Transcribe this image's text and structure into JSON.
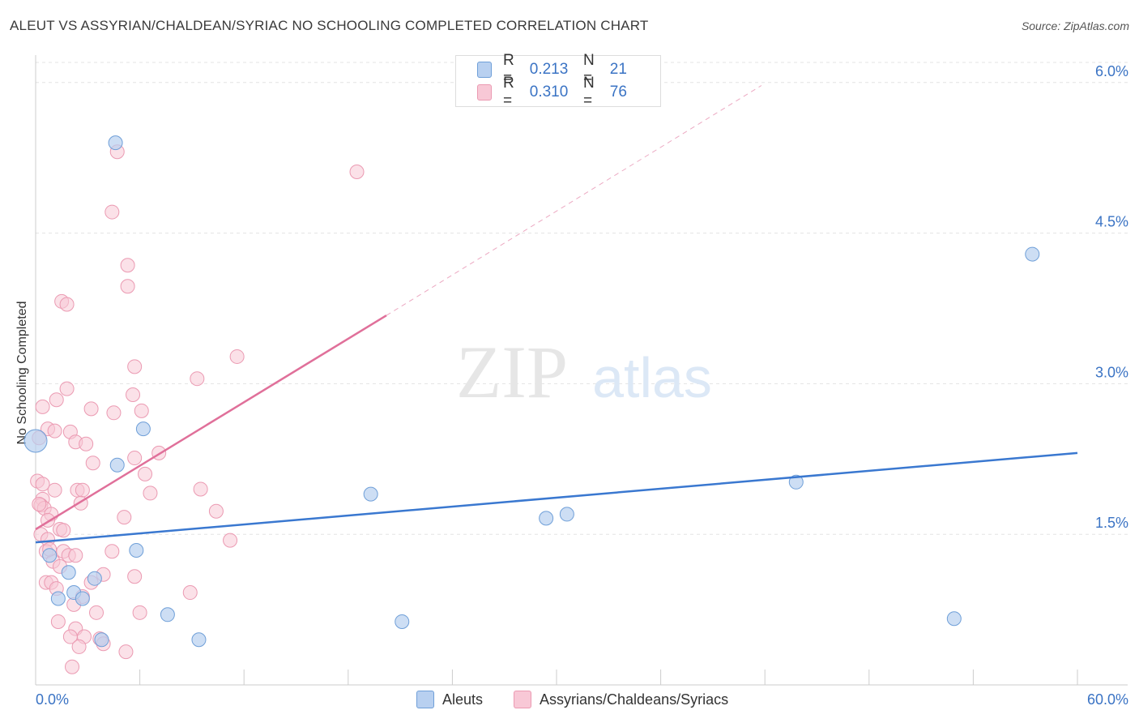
{
  "header": {
    "title": "ALEUT VS ASSYRIAN/CHALDEAN/SYRIAC NO SCHOOLING COMPLETED CORRELATION CHART",
    "source": "Source: ZipAtlas.com"
  },
  "watermark": {
    "zip": "ZIP",
    "atlas": "atlas"
  },
  "legend": {
    "rows": [
      {
        "r_label": "R =",
        "r_value": "0.213",
        "n_label": "N =",
        "n_value": "21"
      },
      {
        "r_label": "R =",
        "r_value": "0.310",
        "n_label": "N =",
        "n_value": "76"
      }
    ]
  },
  "bottom_legend": {
    "aleuts": "Aleuts",
    "assyrians": "Assyrians/Chaldeans/Syriacs"
  },
  "chart_data": {
    "type": "scatter",
    "title": "ALEUT VS ASSYRIAN/CHALDEAN/SYRIAC NO SCHOOLING COMPLETED CORRELATION CHART",
    "xlabel": "",
    "ylabel": "No Schooling Completed",
    "xlim": [
      0,
      60
    ],
    "ylim": [
      0,
      6.2
    ],
    "x_tick_labels": [
      "0.0%",
      "60.0%"
    ],
    "y_ticks": [
      1.5,
      3.0,
      4.5,
      6.0
    ],
    "y_tick_labels": [
      "1.5%",
      "3.0%",
      "4.5%",
      "6.0%"
    ],
    "grid": true,
    "colors": {
      "aleuts_fill": "#b8d0f0",
      "aleuts_stroke": "#6f9fd8",
      "aleuts_line": "#3a78d0",
      "assyrians_fill": "#f8c8d6",
      "assyrians_stroke": "#eb9ab2",
      "assyrians_line": "#e0709a",
      "tick_label": "#3a73c4"
    },
    "series": [
      {
        "name": "Aleuts",
        "r": 0.213,
        "n": 21,
        "trend": {
          "x": [
            0,
            60
          ],
          "y": [
            1.42,
            2.31
          ]
        },
        "points": [
          {
            "x": 0.0,
            "y": 2.43,
            "big": true
          },
          {
            "x": 4.6,
            "y": 5.4
          },
          {
            "x": 6.2,
            "y": 2.55
          },
          {
            "x": 4.7,
            "y": 2.19
          },
          {
            "x": 5.8,
            "y": 1.34
          },
          {
            "x": 0.8,
            "y": 1.29
          },
          {
            "x": 1.9,
            "y": 1.12
          },
          {
            "x": 2.2,
            "y": 0.92
          },
          {
            "x": 1.3,
            "y": 0.86
          },
          {
            "x": 2.7,
            "y": 0.86
          },
          {
            "x": 3.4,
            "y": 1.06
          },
          {
            "x": 3.8,
            "y": 0.45
          },
          {
            "x": 7.6,
            "y": 0.7
          },
          {
            "x": 9.4,
            "y": 0.45
          },
          {
            "x": 19.3,
            "y": 1.9
          },
          {
            "x": 21.1,
            "y": 0.63
          },
          {
            "x": 29.4,
            "y": 1.66
          },
          {
            "x": 30.6,
            "y": 1.7
          },
          {
            "x": 43.8,
            "y": 2.02
          },
          {
            "x": 57.4,
            "y": 4.29
          },
          {
            "x": 52.9,
            "y": 0.66
          }
        ]
      },
      {
        "name": "Assyrians/Chaldeans/Syriacs",
        "r": 0.31,
        "n": 76,
        "trend": {
          "x": [
            0,
            20.2
          ],
          "y": [
            1.55,
            3.68
          ]
        },
        "trend_dashed": {
          "x": [
            20.2,
            41.8
          ],
          "y": [
            3.68,
            5.97
          ]
        },
        "points": [
          {
            "x": 4.7,
            "y": 5.31
          },
          {
            "x": 18.5,
            "y": 5.11
          },
          {
            "x": 4.4,
            "y": 4.71
          },
          {
            "x": 5.3,
            "y": 4.18
          },
          {
            "x": 5.3,
            "y": 3.97
          },
          {
            "x": 1.5,
            "y": 3.82
          },
          {
            "x": 1.8,
            "y": 3.79
          },
          {
            "x": 11.6,
            "y": 3.27
          },
          {
            "x": 5.7,
            "y": 3.17
          },
          {
            "x": 9.3,
            "y": 3.05
          },
          {
            "x": 1.8,
            "y": 2.95
          },
          {
            "x": 5.6,
            "y": 2.89
          },
          {
            "x": 1.2,
            "y": 2.84
          },
          {
            "x": 0.4,
            "y": 2.77
          },
          {
            "x": 3.2,
            "y": 2.75
          },
          {
            "x": 4.5,
            "y": 2.71
          },
          {
            "x": 6.1,
            "y": 2.73
          },
          {
            "x": 0.7,
            "y": 2.55
          },
          {
            "x": 1.1,
            "y": 2.53
          },
          {
            "x": 2.0,
            "y": 2.52
          },
          {
            "x": 2.3,
            "y": 2.42
          },
          {
            "x": 2.9,
            "y": 2.4
          },
          {
            "x": 0.2,
            "y": 2.46
          },
          {
            "x": 7.1,
            "y": 2.31
          },
          {
            "x": 5.7,
            "y": 2.26
          },
          {
            "x": 3.3,
            "y": 2.21
          },
          {
            "x": 6.3,
            "y": 2.1
          },
          {
            "x": 0.1,
            "y": 2.03
          },
          {
            "x": 2.4,
            "y": 1.94
          },
          {
            "x": 2.7,
            "y": 1.94
          },
          {
            "x": 1.1,
            "y": 1.94
          },
          {
            "x": 6.6,
            "y": 1.91
          },
          {
            "x": 9.5,
            "y": 1.95
          },
          {
            "x": 0.4,
            "y": 1.85
          },
          {
            "x": 0.3,
            "y": 1.79
          },
          {
            "x": 0.5,
            "y": 1.76
          },
          {
            "x": 2.6,
            "y": 1.81
          },
          {
            "x": 10.4,
            "y": 1.73
          },
          {
            "x": 0.9,
            "y": 1.7
          },
          {
            "x": 5.1,
            "y": 1.67
          },
          {
            "x": 0.7,
            "y": 1.64
          },
          {
            "x": 1.4,
            "y": 1.55
          },
          {
            "x": 1.6,
            "y": 1.54
          },
          {
            "x": 0.3,
            "y": 1.5
          },
          {
            "x": 0.7,
            "y": 1.45
          },
          {
            "x": 11.2,
            "y": 1.44
          },
          {
            "x": 0.6,
            "y": 1.33
          },
          {
            "x": 1.6,
            "y": 1.33
          },
          {
            "x": 1.9,
            "y": 1.29
          },
          {
            "x": 2.3,
            "y": 1.29
          },
          {
            "x": 4.4,
            "y": 1.33
          },
          {
            "x": 1.0,
            "y": 1.23
          },
          {
            "x": 1.4,
            "y": 1.18
          },
          {
            "x": 0.6,
            "y": 1.02
          },
          {
            "x": 0.9,
            "y": 1.02
          },
          {
            "x": 1.2,
            "y": 0.96
          },
          {
            "x": 3.2,
            "y": 1.02
          },
          {
            "x": 3.9,
            "y": 1.1
          },
          {
            "x": 5.7,
            "y": 1.08
          },
          {
            "x": 8.9,
            "y": 0.92
          },
          {
            "x": 2.7,
            "y": 0.88
          },
          {
            "x": 2.2,
            "y": 0.8
          },
          {
            "x": 3.5,
            "y": 0.72
          },
          {
            "x": 6.0,
            "y": 0.72
          },
          {
            "x": 1.3,
            "y": 0.63
          },
          {
            "x": 2.3,
            "y": 0.56
          },
          {
            "x": 2.0,
            "y": 0.48
          },
          {
            "x": 2.8,
            "y": 0.48
          },
          {
            "x": 3.7,
            "y": 0.46
          },
          {
            "x": 3.9,
            "y": 0.41
          },
          {
            "x": 2.5,
            "y": 0.38
          },
          {
            "x": 5.2,
            "y": 0.33
          },
          {
            "x": 2.1,
            "y": 0.18
          },
          {
            "x": 0.2,
            "y": 1.8
          },
          {
            "x": 0.4,
            "y": 2.0
          },
          {
            "x": 0.8,
            "y": 1.35
          }
        ]
      }
    ]
  }
}
